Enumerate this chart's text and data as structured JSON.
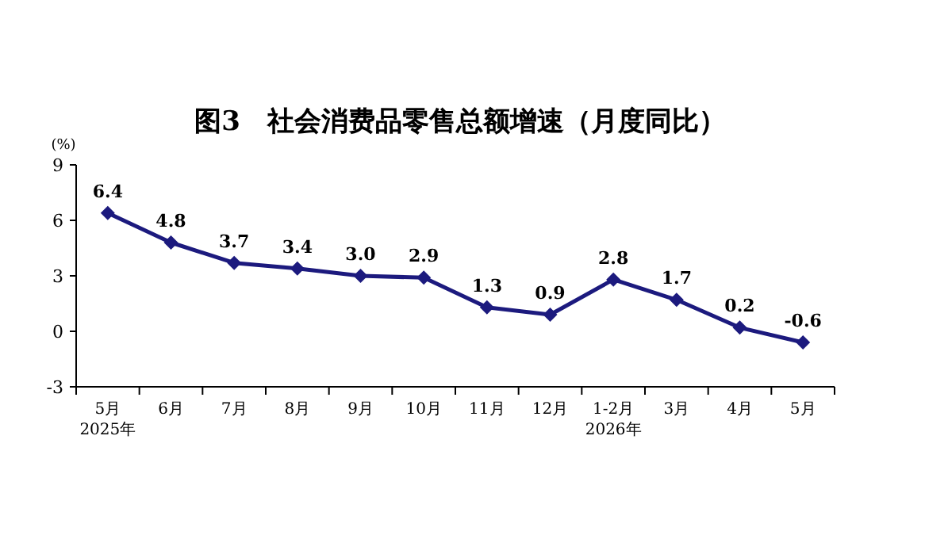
{
  "chart_data": {
    "type": "line",
    "title": "图3　社会消费品零售总额增速（月度同比）",
    "ylabel": "(%)",
    "categories": [
      "5月 2025年",
      "6月",
      "7月",
      "8月",
      "9月",
      "10月",
      "11月",
      "12月",
      "1-2月 2026年",
      "3月",
      "4月",
      "5月"
    ],
    "series": [
      {
        "color": "#1c1a7e",
        "values": [
          6.4,
          4.8,
          3.7,
          3.4,
          3.0,
          2.9,
          1.3,
          0.9,
          2.8,
          1.7,
          0.2,
          -0.6
        ],
        "value_labels": [
          "6.4",
          "4.8",
          "3.7",
          "3.4",
          "3.0",
          "2.9",
          "1.3",
          "0.9",
          "2.8",
          "1.7",
          "0.2",
          "-0.6"
        ]
      }
    ],
    "ylim": [
      -3,
      9
    ],
    "yticks": [
      -3,
      0,
      3,
      6,
      9
    ],
    "marker": "diamond",
    "line_style": "solid",
    "grid": false
  }
}
